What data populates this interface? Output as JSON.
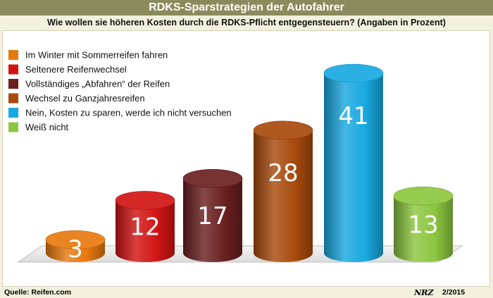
{
  "chart_data": {
    "type": "bar",
    "title": "RDKS-Sparstrategien der Autofahrer",
    "subtitle": "Wie wollen sie höheren Kosten durch die RDKS-Pflicht entgegensteuern? (Angaben in Prozent)",
    "categories": [
      "Im Winter mit Sommerreifen fahren",
      "Seltenere Reifenwechsel",
      "Vollständiges „Abfahren“ der Reifen",
      "Wechsel zu Ganzjahresreifen",
      "Nein, Kosten zu sparen, werde ich nicht versuchen",
      "Weiß nicht"
    ],
    "values": [
      3,
      12,
      17,
      28,
      41,
      13
    ],
    "data_labels": [
      "3",
      "12",
      "17",
      "28",
      "41",
      "13"
    ],
    "colors": [
      "#e8790f",
      "#d21414",
      "#6b2020",
      "#a84a0c",
      "#18a9e0",
      "#8cc63f"
    ],
    "legend_position": "top-left",
    "ylim": [
      0,
      45
    ]
  },
  "footer": {
    "source": "Quelle: Reifen.com",
    "logo_text": "NRZ",
    "issue": "2/2015"
  }
}
